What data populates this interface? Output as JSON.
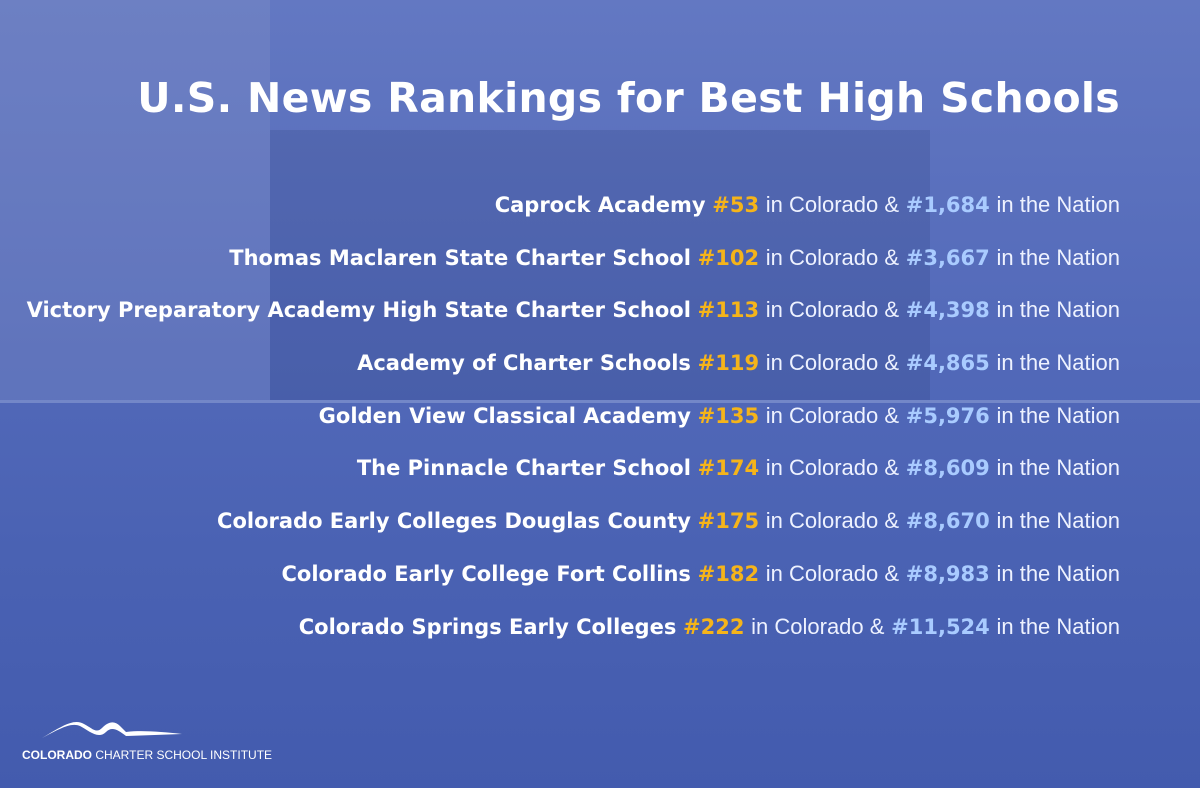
{
  "header": {
    "title": "U.S. News Rankings for Best High Schools"
  },
  "state_suffix": "in Colorado &",
  "nation_suffix": "in the Nation",
  "rows": [
    {
      "school": "Caprock Academy",
      "state_rank": "#53",
      "national_rank": "#1,684"
    },
    {
      "school": "Thomas Maclaren State Charter School",
      "state_rank": "#102",
      "national_rank": "#3,667"
    },
    {
      "school": "Victory Preparatory Academy High State Charter School",
      "state_rank": "#113",
      "national_rank": "#4,398"
    },
    {
      "school": "Academy of Charter Schools",
      "state_rank": "#119",
      "national_rank": "#4,865"
    },
    {
      "school": "Golden View Classical Academy",
      "state_rank": "#135",
      "national_rank": "#5,976"
    },
    {
      "school": "The Pinnacle Charter School",
      "state_rank": "#174",
      "national_rank": "#8,609"
    },
    {
      "school": "Colorado Early Colleges Douglas County",
      "state_rank": "#175",
      "national_rank": "#8,670"
    },
    {
      "school": "Colorado Early College Fort Collins",
      "state_rank": "#182",
      "national_rank": "#8,983"
    },
    {
      "school": "Colorado Springs Early Colleges",
      "state_rank": "#222",
      "national_rank": "#11,524"
    }
  ],
  "footer": {
    "logo_bold": "COLORADO",
    "logo_rest": "CHARTER SCHOOL INSTITUTE"
  }
}
